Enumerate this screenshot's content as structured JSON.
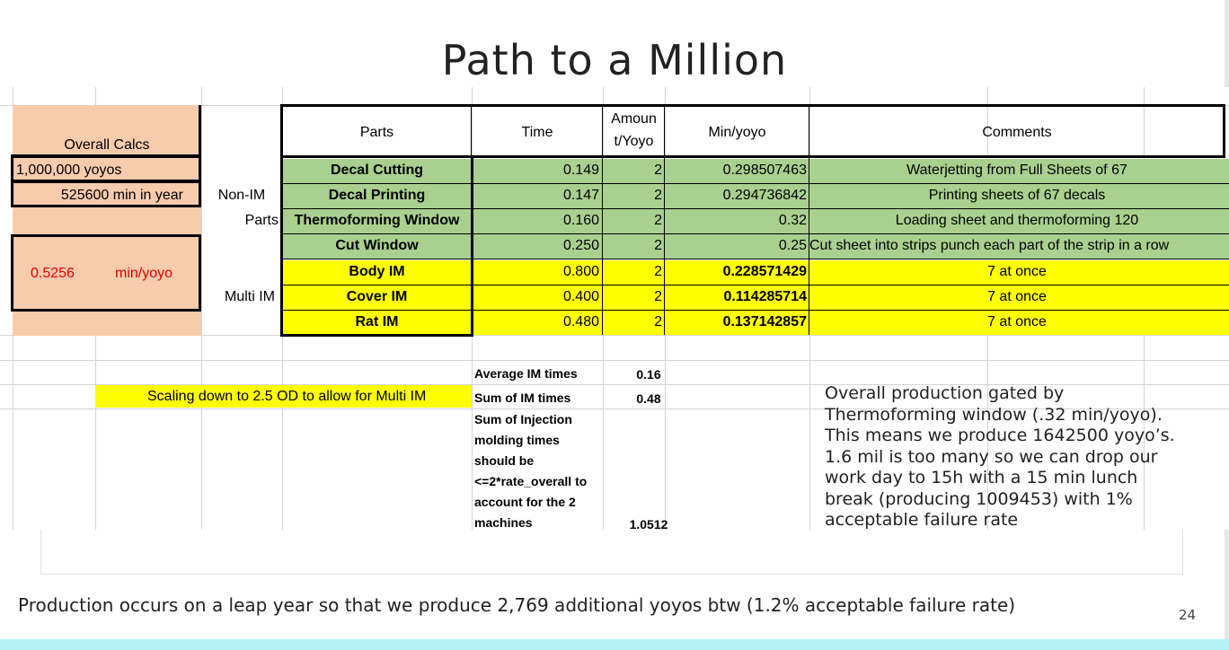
{
  "title": "Path to a Million",
  "overall": {
    "header": "Overall Calcs",
    "yoyos": "1,000,000  yoyos",
    "min_in_year": "525600  min in year",
    "rate_value": "0.5256",
    "rate_unit": "min/yoyo"
  },
  "groups": {
    "non_im_line1": "Non-IM",
    "non_im_line2": "Parts",
    "multi_im": "Multi IM"
  },
  "table": {
    "headers": {
      "parts": "Parts",
      "time": "Time",
      "amount_l1": "Amoun",
      "amount_l2": "t/Yoyo",
      "min_yoyo": "Min/yoyo",
      "comments": "Comments"
    },
    "rows": [
      {
        "part": "Decal Cutting",
        "time": "0.149",
        "amount": "2",
        "min_yoyo": "0.298507463",
        "comment": "Waterjetting from Full Sheets of 67"
      },
      {
        "part": "Decal Printing",
        "time": "0.147",
        "amount": "2",
        "min_yoyo": "0.294736842",
        "comment": "Printing sheets of 67 decals"
      },
      {
        "part": "Thermoforming Window",
        "time": "0.160",
        "amount": "2",
        "min_yoyo": "0.32",
        "comment": "Loading sheet and thermoforming 120"
      },
      {
        "part": "Cut Window",
        "time": "0.250",
        "amount": "2",
        "min_yoyo": "0.25",
        "comment": "Cut sheet into strips punch each part of the strip in a row"
      },
      {
        "part": "Body IM",
        "time": "0.800",
        "amount": "2",
        "min_yoyo": "0.228571429",
        "comment": "7 at once"
      },
      {
        "part": "Cover IM",
        "time": "0.400",
        "amount": "2",
        "min_yoyo": "0.114285714",
        "comment": "7 at once"
      },
      {
        "part": "Rat IM",
        "time": "0.480",
        "amount": "2",
        "min_yoyo": "0.137142857",
        "comment": "7 at once"
      }
    ]
  },
  "stats": {
    "avg_label": "Average IM times",
    "avg_value": "0.16",
    "sum_label": "Sum of IM times",
    "sum_value": "0.48",
    "inj_lines": [
      "Sum of Injection",
      "molding times",
      "should be",
      "<=2*rate_overall to",
      "account for the 2",
      "machines"
    ],
    "inj_value": "1.0512"
  },
  "scaling_note": "Scaling down to 2.5 OD  to allow for Multi IM",
  "production_note": "Overall production gated by Thermoforming window (.32 min/yoyo). This means we produce 1642500 yoyo’s. 1.6 mil is too many so we can drop our work day to 15h with a 15 min lunch break (producing 1009453) with 1% acceptable failure rate",
  "footer": "Production occurs on a leap year so that we produce 2,769 additional yoyos btw (1.2% acceptable failure rate)",
  "page_number": "24"
}
